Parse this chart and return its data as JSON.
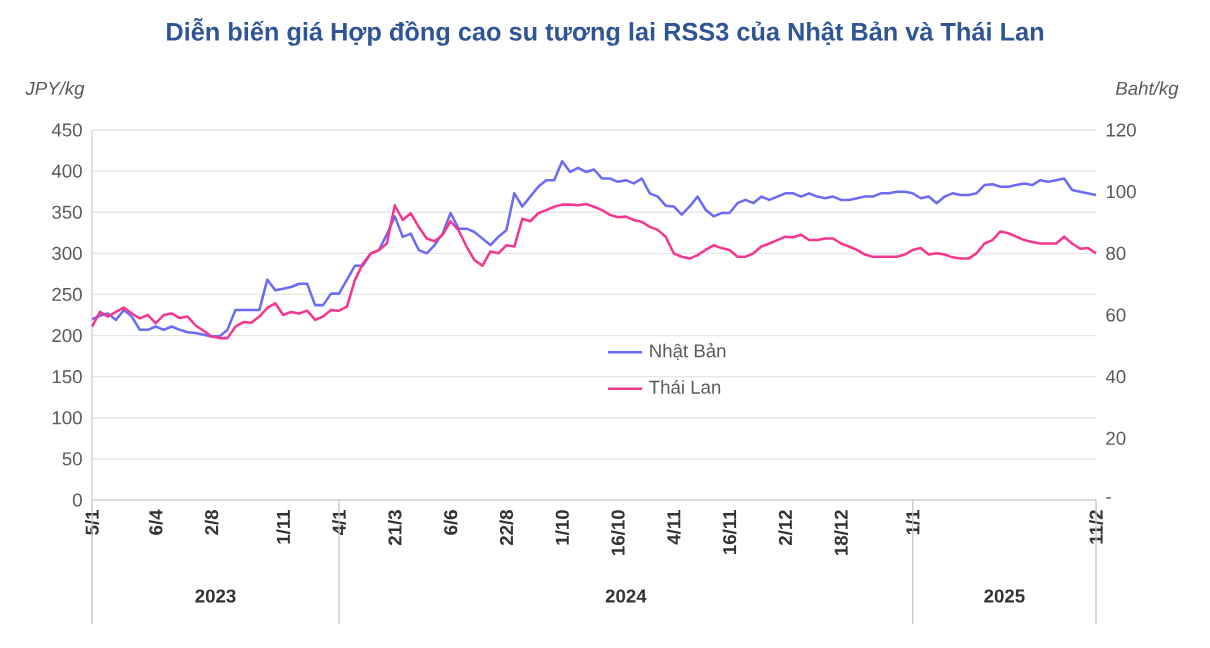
{
  "chart_data": {
    "type": "line",
    "title": "Diễn biến giá Hợp đồng cao su tương lai RSS3 của Nhật Bản và Thái Lan",
    "ylabel": "JPY/kg",
    "y2label": "Baht/kg",
    "categories": [
      "5/1",
      null,
      null,
      null,
      null,
      null,
      null,
      null,
      "6/4",
      null,
      null,
      null,
      null,
      null,
      null,
      "2/8",
      null,
      null,
      null,
      null,
      null,
      null,
      null,
      null,
      "1/11",
      null,
      null,
      null,
      null,
      null,
      null,
      "4/1",
      null,
      null,
      null,
      null,
      null,
      null,
      "21/3",
      null,
      null,
      null,
      null,
      null,
      null,
      "6/6",
      null,
      null,
      null,
      null,
      null,
      null,
      "22/8",
      null,
      null,
      null,
      null,
      null,
      null,
      "1/10",
      null,
      null,
      null,
      null,
      null,
      null,
      "16/10",
      null,
      null,
      null,
      null,
      null,
      null,
      "4/11",
      null,
      null,
      null,
      null,
      null,
      null,
      "16/11",
      null,
      null,
      null,
      null,
      null,
      null,
      "2/12",
      null,
      null,
      null,
      null,
      null,
      null,
      "18/12",
      null,
      null,
      null,
      null,
      null,
      null,
      null,
      null,
      "1/1",
      null,
      null,
      null,
      null,
      null,
      null,
      null,
      null,
      null,
      null,
      null,
      null,
      null,
      null,
      null,
      null,
      null,
      null,
      null,
      null,
      null,
      null,
      "11/2"
    ],
    "series": [
      {
        "name": "Nhật Bản",
        "color": "#6b6bf5",
        "values": [
          220,
          224,
          227,
          219,
          231,
          223,
          207,
          207,
          211,
          207,
          211,
          207,
          204,
          203,
          201,
          199,
          199,
          207,
          231,
          231,
          231,
          231,
          268,
          255,
          257,
          259,
          263,
          263,
          237,
          237,
          251,
          251,
          268,
          285,
          285,
          300,
          304,
          323,
          345,
          320,
          324,
          304,
          300,
          310,
          324,
          349,
          330,
          330,
          326,
          318,
          310,
          320,
          328,
          373,
          357,
          369,
          381,
          389,
          389,
          412,
          399,
          404,
          399,
          402,
          391,
          391,
          387,
          389,
          385,
          391,
          373,
          369,
          358,
          357,
          347,
          357,
          369,
          353,
          345,
          349,
          349,
          361,
          365,
          361,
          369,
          365,
          369,
          373,
          373,
          369,
          373,
          369,
          367,
          369,
          365,
          365,
          367,
          369,
          369,
          373,
          373,
          375,
          375,
          373,
          367,
          369,
          361,
          369,
          373,
          371,
          371,
          373,
          383,
          384,
          381,
          381,
          383,
          385,
          383,
          389,
          387,
          389,
          391,
          377,
          375,
          373,
          371
        ]
      },
      {
        "name": "Thái Lan",
        "color": "#f5388f",
        "axis": "y2",
        "values": [
          56.2,
          61,
          59.5,
          61,
          62.4,
          60.5,
          58.9,
          60,
          57.3,
          60,
          60.5,
          59,
          59.5,
          56.6,
          54.9,
          53,
          52.5,
          52.5,
          56.2,
          57.7,
          57.5,
          59.5,
          62.3,
          63.8,
          60,
          61,
          60.5,
          61.4,
          58.4,
          59.5,
          61.6,
          61.4,
          62.7,
          71.4,
          76.7,
          80,
          81,
          83.2,
          95.6,
          90.8,
          93,
          88.6,
          84.8,
          83.9,
          86,
          90.4,
          87.5,
          82.2,
          77.8,
          76,
          80.6,
          80,
          82.6,
          82.2,
          91.2,
          90.4,
          93,
          94,
          95.1,
          95.8,
          95.8,
          95.6,
          96,
          95.1,
          94,
          92.5,
          91.7,
          91.9,
          90.8,
          90.2,
          88.6,
          87.6,
          85.4,
          80,
          78.9,
          78.3,
          79.4,
          81.1,
          82.6,
          81.7,
          81.1,
          78.9,
          78.9,
          80,
          82.2,
          83.2,
          84.3,
          85.4,
          85.2,
          86,
          84.3,
          84.3,
          84.8,
          84.8,
          83.2,
          82.2,
          81.1,
          79.6,
          78.9,
          78.9,
          78.9,
          78.9,
          79.6,
          81.1,
          81.7,
          79.6,
          80,
          79.6,
          78.7,
          78.3,
          78.3,
          80,
          83.2,
          84.3,
          87.1,
          86.5,
          85.4,
          84.3,
          83.7,
          83.2,
          83.2,
          83.2,
          85.4,
          83.2,
          81.5,
          81.7,
          80
        ]
      }
    ],
    "ylim": [
      0,
      450
    ],
    "yticks": [
      0,
      50,
      100,
      150,
      200,
      250,
      300,
      350,
      400,
      450
    ],
    "y2lim": [
      0,
      120
    ],
    "y2ticks": [
      {
        "value": 0,
        "label": "-"
      },
      20,
      40,
      60,
      80,
      100,
      120
    ],
    "grid": "y",
    "legend": "center",
    "annotations": [
      "2023",
      "2024",
      "2025"
    ]
  }
}
